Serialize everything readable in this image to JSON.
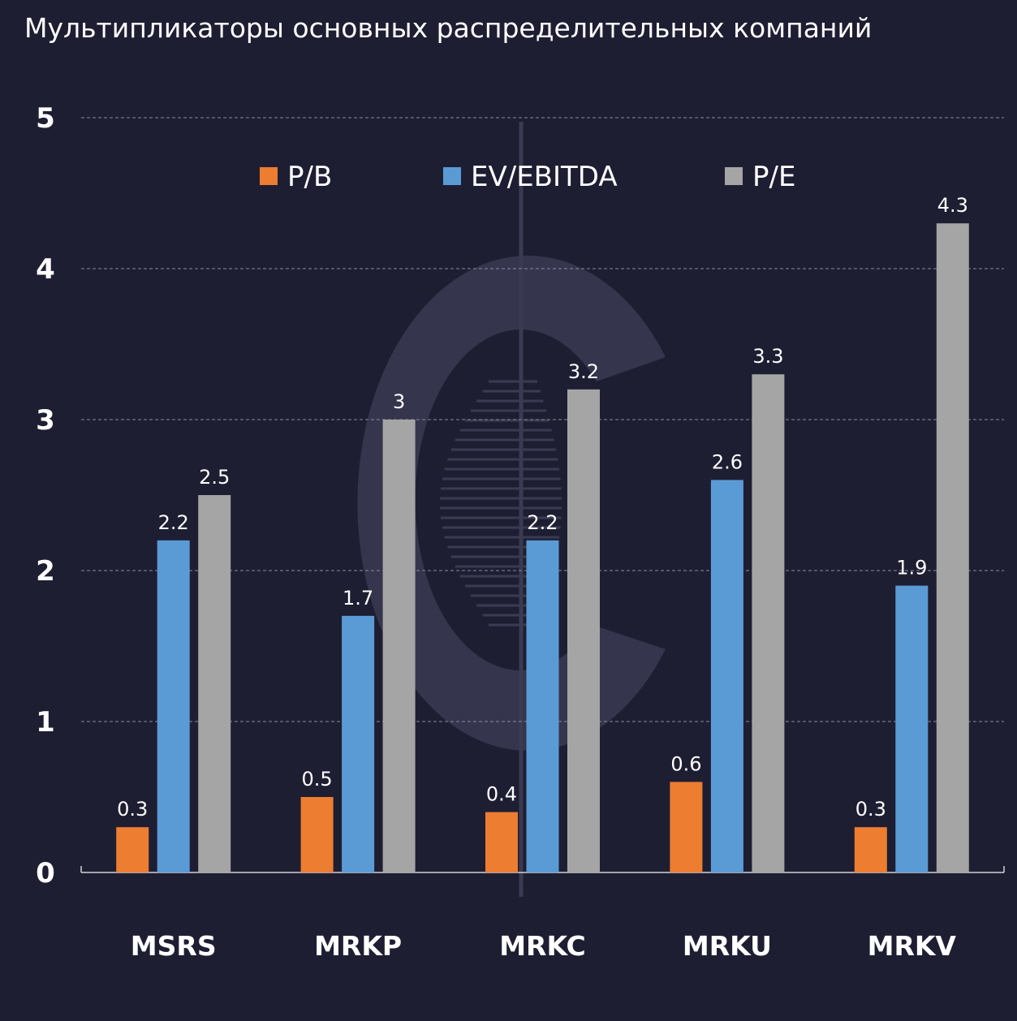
{
  "chart_data": {
    "type": "bar",
    "title": "Мультипликаторы основных распределительных компаний",
    "categories": [
      "MSRS",
      "MRKP",
      "MRKC",
      "MRKU",
      "MRKV"
    ],
    "series": [
      {
        "name": "P/B",
        "color": "#ed7d31",
        "values": [
          0.3,
          0.5,
          0.4,
          0.6,
          0.3
        ]
      },
      {
        "name": "EV/EBITDA",
        "color": "#5b9bd5",
        "values": [
          2.2,
          1.7,
          2.2,
          2.6,
          1.9
        ]
      },
      {
        "name": "P/E",
        "color": "#a5a5a5",
        "values": [
          2.5,
          3,
          3.2,
          3.3,
          4.3
        ]
      }
    ],
    "ylim": [
      0,
      5
    ],
    "yticks": [
      "0",
      "1",
      "2",
      "3",
      "4",
      "5"
    ],
    "xlabel": "",
    "ylabel": "",
    "grid": true,
    "legend_position": "top"
  },
  "colors": {
    "background": "#1e1e33",
    "watermark": "#3a3a52",
    "text": "#ffffff"
  }
}
